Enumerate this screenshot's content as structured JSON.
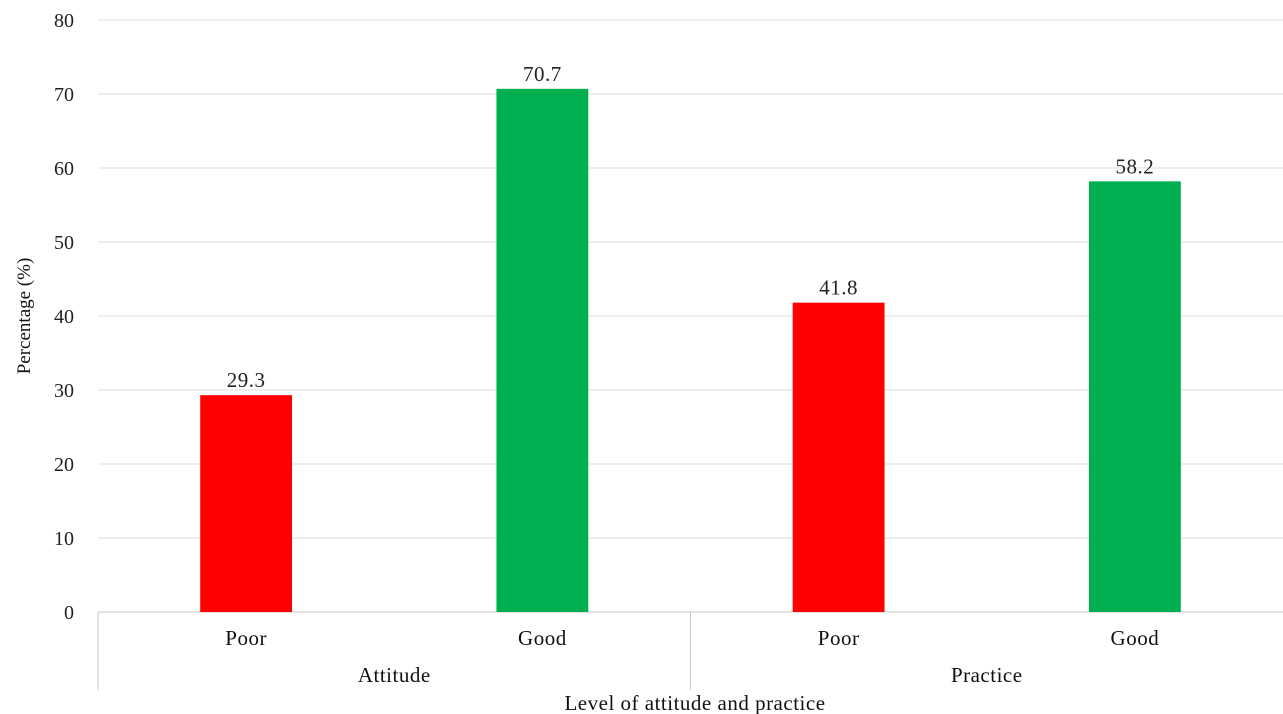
{
  "chart_data": {
    "type": "bar",
    "title": "",
    "xlabel": "Level of attitude and practice",
    "ylabel": "Percentage (%)",
    "ylim": [
      0,
      80
    ],
    "yticks": [
      0,
      10,
      20,
      30,
      40,
      50,
      60,
      70,
      80
    ],
    "grid": true,
    "groups": [
      {
        "label": "Attitude",
        "categories": [
          "Poor",
          "Good"
        ],
        "values": [
          29.3,
          70.7
        ]
      },
      {
        "label": "Practice",
        "categories": [
          "Poor",
          "Good"
        ],
        "values": [
          41.8,
          58.2
        ]
      }
    ],
    "colors": {
      "Poor": "#ff0000",
      "Good": "#00b050"
    },
    "data_labels": true
  }
}
